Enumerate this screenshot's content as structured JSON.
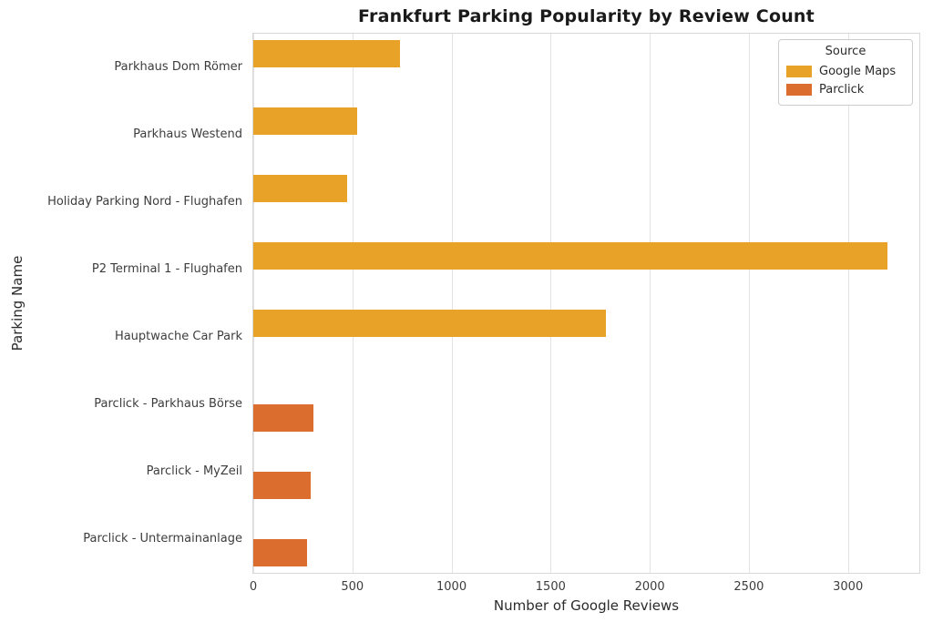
{
  "chart_data": {
    "type": "bar",
    "orientation": "horizontal",
    "title": "Frankfurt Parking Popularity by Review Count",
    "xlabel": "Number of Google Reviews",
    "ylabel": "Parking Name",
    "xlim": [
      0,
      3360
    ],
    "xticks": [
      0,
      500,
      1000,
      1500,
      2000,
      2500,
      3000
    ],
    "grid": true,
    "categories": [
      "Parkhaus Dom Römer",
      "Parkhaus Westend",
      "Holiday Parking Nord - Flughafen",
      "P2 Terminal 1 - Flughafen",
      "Hauptwache Car Park",
      "Parclick - Parkhaus Börse",
      "Parclick - MyZeil",
      "Parclick - Untermainanlage"
    ],
    "series": [
      {
        "name": "Google Maps",
        "color": "#e8a227",
        "values": [
          740,
          525,
          475,
          3200,
          1780,
          null,
          null,
          null
        ]
      },
      {
        "name": "Parclick",
        "color": "#db6e2e",
        "values": [
          null,
          null,
          null,
          null,
          null,
          305,
          290,
          270
        ]
      }
    ],
    "legend": {
      "title": "Source",
      "position": "upper right",
      "entries": [
        {
          "label": "Google Maps",
          "color": "#e8a227"
        },
        {
          "label": "Parclick",
          "color": "#db6e2e"
        }
      ]
    }
  }
}
